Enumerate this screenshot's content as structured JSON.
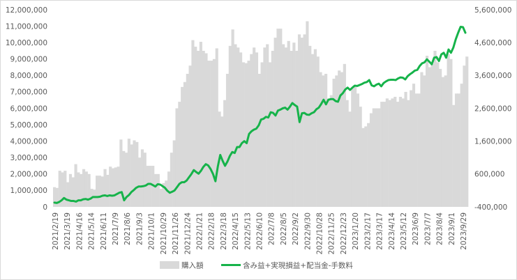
{
  "chart_data": {
    "type": "bar+line",
    "title": "",
    "xlabel": "",
    "ylabel": "",
    "left_axis": {
      "min": 0,
      "max": 12000000,
      "step": 1000000,
      "tick_labels": [
        "0",
        "1,000,000",
        "2,000,000",
        "3,000,000",
        "4,000,000",
        "5,000,000",
        "6,000,000",
        "7,000,000",
        "8,000,000",
        "9,000,000",
        "10,000,000",
        "11,000,000",
        "12,000,000"
      ]
    },
    "right_axis": {
      "min": -400000,
      "max": 5600000,
      "step": 1000000,
      "tick_labels": [
        "-400,000",
        "600,000",
        "1,600,000",
        "2,600,000",
        "3,600,000",
        "4,600,000",
        "5,600,000"
      ],
      "negative_color": "#ff0000"
    },
    "x_tick_labels": [
      "2021/2/19",
      "2021/3/19",
      "2021/4/16",
      "2021/5/14",
      "2021/6/11",
      "2021/7/9",
      "2021/8/6",
      "2021/9/3",
      "2021/10/1",
      "2021/10/29",
      "2021/11/26",
      "2021/12/24",
      "2022/1/21",
      "2022/2/18",
      "2022/3/18",
      "2022/4/15",
      "2022/5/13",
      "2022/6/10",
      "2022/7/8",
      "2022/8/5",
      "2022/9/2",
      "2022/9/30",
      "2022/10/28",
      "2022/11/25",
      "2022/12/23",
      "2023/1/20",
      "2023/2/17",
      "2023/3/17",
      "2023/4/14",
      "2023/5/12",
      "2023/6/9",
      "2023/7/7",
      "2023/8/4",
      "2023/9/1",
      "2023/9/29"
    ],
    "legend": {
      "position": "bottom"
    },
    "grid": false,
    "series": [
      {
        "name": "購入額",
        "type": "bar",
        "axis": "left",
        "color": "#d9d9d9",
        "values": [
          1200000,
          1150000,
          2200000,
          2100000,
          2200000,
          1500000,
          2000000,
          1800000,
          2600000,
          2100000,
          2000000,
          2300000,
          2150000,
          2000000,
          1100000,
          1050000,
          1900000,
          1900000,
          1850000,
          2300000,
          1950000,
          2450000,
          2350000,
          2400000,
          2450000,
          4100000,
          3400000,
          3300000,
          4150000,
          3800000,
          4050000,
          3950000,
          3000000,
          3500000,
          3300000,
          2500000,
          2500000,
          2500000,
          2000000,
          2000000,
          1100000,
          1450000,
          1600000,
          2150000,
          3300000,
          4050000,
          6000000,
          6400000,
          7300000,
          7600000,
          8100000,
          8600000,
          10150000,
          9750000,
          9500000,
          10050000,
          9500000,
          9350000,
          8900000,
          8900000,
          9000000,
          9650000,
          5800000,
          5500000,
          6500000,
          8100000,
          9800000,
          10800000,
          9900000,
          9700000,
          9400000,
          8800000,
          8750000,
          8900000,
          9300000,
          9700000,
          9400000,
          8100000,
          8800000,
          9700000,
          9900000,
          8800000,
          9500000,
          10300000,
          10850000,
          10850000,
          9900000,
          9700000,
          10100000,
          9500000,
          10000000,
          9500000,
          10500000,
          10300000,
          10500000,
          11300000,
          9800000,
          9300000,
          9600000,
          9150000,
          8200000,
          8000000,
          8100000,
          6600000,
          6800000,
          7800000,
          8000000,
          8300000,
          8200000,
          8700000,
          6500000,
          5800000,
          7200000,
          7300000,
          6900000,
          6100000,
          4800000,
          4900000,
          5100000,
          5700000,
          6000000,
          6000000,
          6000000,
          6400000,
          6400000,
          6600000,
          6500000,
          6600000,
          6700000,
          6400000,
          6700000,
          6600000,
          7000000,
          6500000,
          7100000,
          7500000,
          6900000,
          6900000,
          8200000,
          8000000,
          9200000,
          8500000,
          8700000,
          9500000,
          8800000,
          8400000,
          7900000,
          8000000,
          9300000,
          9000000,
          6200000,
          6900000,
          6900000,
          7500000,
          8600000,
          9150000
        ]
      },
      {
        "name": "含み益+実現損益+配当金-手数料",
        "type": "line",
        "axis": "right",
        "color": "#16b34a",
        "values": [
          -270000,
          -280000,
          -250000,
          -200000,
          -130000,
          -180000,
          -200000,
          -220000,
          -220000,
          -240000,
          -200000,
          -200000,
          -170000,
          -160000,
          -180000,
          -150000,
          -100000,
          -100000,
          -100000,
          -90000,
          -60000,
          -50000,
          -70000,
          -50000,
          -60000,
          -50000,
          -10000,
          30000,
          50000,
          -200000,
          -100000,
          -40000,
          50000,
          110000,
          180000,
          220000,
          220000,
          230000,
          250000,
          300000,
          300000,
          260000,
          220000,
          290000,
          280000,
          230000,
          180000,
          90000,
          30000,
          60000,
          100000,
          200000,
          300000,
          350000,
          350000,
          400000,
          500000,
          600000,
          720000,
          660000,
          610000,
          700000,
          820000,
          900000,
          860000,
          750000,
          600000,
          380000,
          830000,
          1180000,
          1000000,
          850000,
          980000,
          1150000,
          1270000,
          1240000,
          1420000,
          1420000,
          1540000,
          1600000,
          1540000,
          1820000,
          1900000,
          1950000,
          1980000,
          2080000,
          2260000,
          2280000,
          2340000,
          2320000,
          2480000,
          2460000,
          2380000,
          2530000,
          2560000,
          2600000,
          2620000,
          2560000,
          2650000,
          2760000,
          2700000,
          2650000,
          2180000,
          2450000,
          2460000,
          2410000,
          2400000,
          2450000,
          2480000,
          2570000,
          2620000,
          2730000,
          2860000,
          2720000,
          2860000,
          2880000,
          2880000,
          2820000,
          2800000,
          2990000,
          3060000,
          3170000,
          3230000,
          3160000,
          3230000,
          3290000,
          3280000,
          3310000,
          3340000,
          3380000,
          3400000,
          3460000,
          3300000,
          3270000,
          3320000,
          3350000,
          3270000,
          3370000,
          3420000,
          3460000,
          3470000,
          3470000,
          3460000,
          3510000,
          3540000,
          3530000,
          3480000,
          3580000,
          3640000,
          3690000,
          3750000,
          3770000,
          3890000,
          3970000,
          4000000,
          4090000,
          4020000,
          3940000,
          4140000,
          4160000,
          4040000,
          4240000,
          4290000,
          4140000,
          4390000,
          4290000,
          4450000,
          4700000,
          4900000,
          5080000,
          5070000,
          4900000
        ]
      }
    ]
  }
}
